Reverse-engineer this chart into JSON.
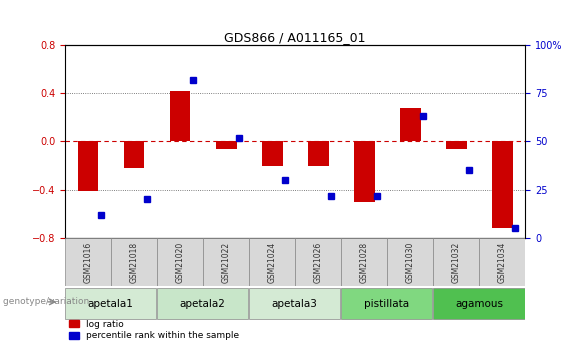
{
  "title": "GDS866 / A011165_01",
  "samples": [
    "GSM21016",
    "GSM21018",
    "GSM21020",
    "GSM21022",
    "GSM21024",
    "GSM21026",
    "GSM21028",
    "GSM21030",
    "GSM21032",
    "GSM21034"
  ],
  "log_ratio": [
    -0.41,
    -0.22,
    0.42,
    -0.06,
    -0.2,
    -0.2,
    -0.5,
    0.28,
    -0.06,
    -0.72
  ],
  "percentile_rank": [
    12,
    20,
    82,
    52,
    30,
    22,
    22,
    63,
    35,
    5
  ],
  "ylim": [
    -0.8,
    0.8
  ],
  "yticks_left": [
    -0.8,
    -0.4,
    0.0,
    0.4,
    0.8
  ],
  "yticks_right": [
    0,
    25,
    50,
    75,
    100
  ],
  "groups": [
    {
      "label": "apetala1",
      "start": 0,
      "end": 2,
      "color": "#d4ead4"
    },
    {
      "label": "apetala2",
      "start": 2,
      "end": 4,
      "color": "#c8e6c9"
    },
    {
      "label": "apetala3",
      "start": 4,
      "end": 6,
      "color": "#d4ead4"
    },
    {
      "label": "pistillata",
      "start": 6,
      "end": 8,
      "color": "#80d880"
    },
    {
      "label": "agamous",
      "start": 8,
      "end": 10,
      "color": "#50c050"
    }
  ],
  "sample_box_color": "#d8d8d8",
  "bar_color_red": "#cc0000",
  "dot_color_blue": "#0000cc",
  "zero_line_color": "#cc0000",
  "dot_line_color": "#555555",
  "background_color": "#ffffff",
  "legend_red_label": "log ratio",
  "legend_blue_label": "percentile rank within the sample",
  "genotype_label": "genotype/variation"
}
